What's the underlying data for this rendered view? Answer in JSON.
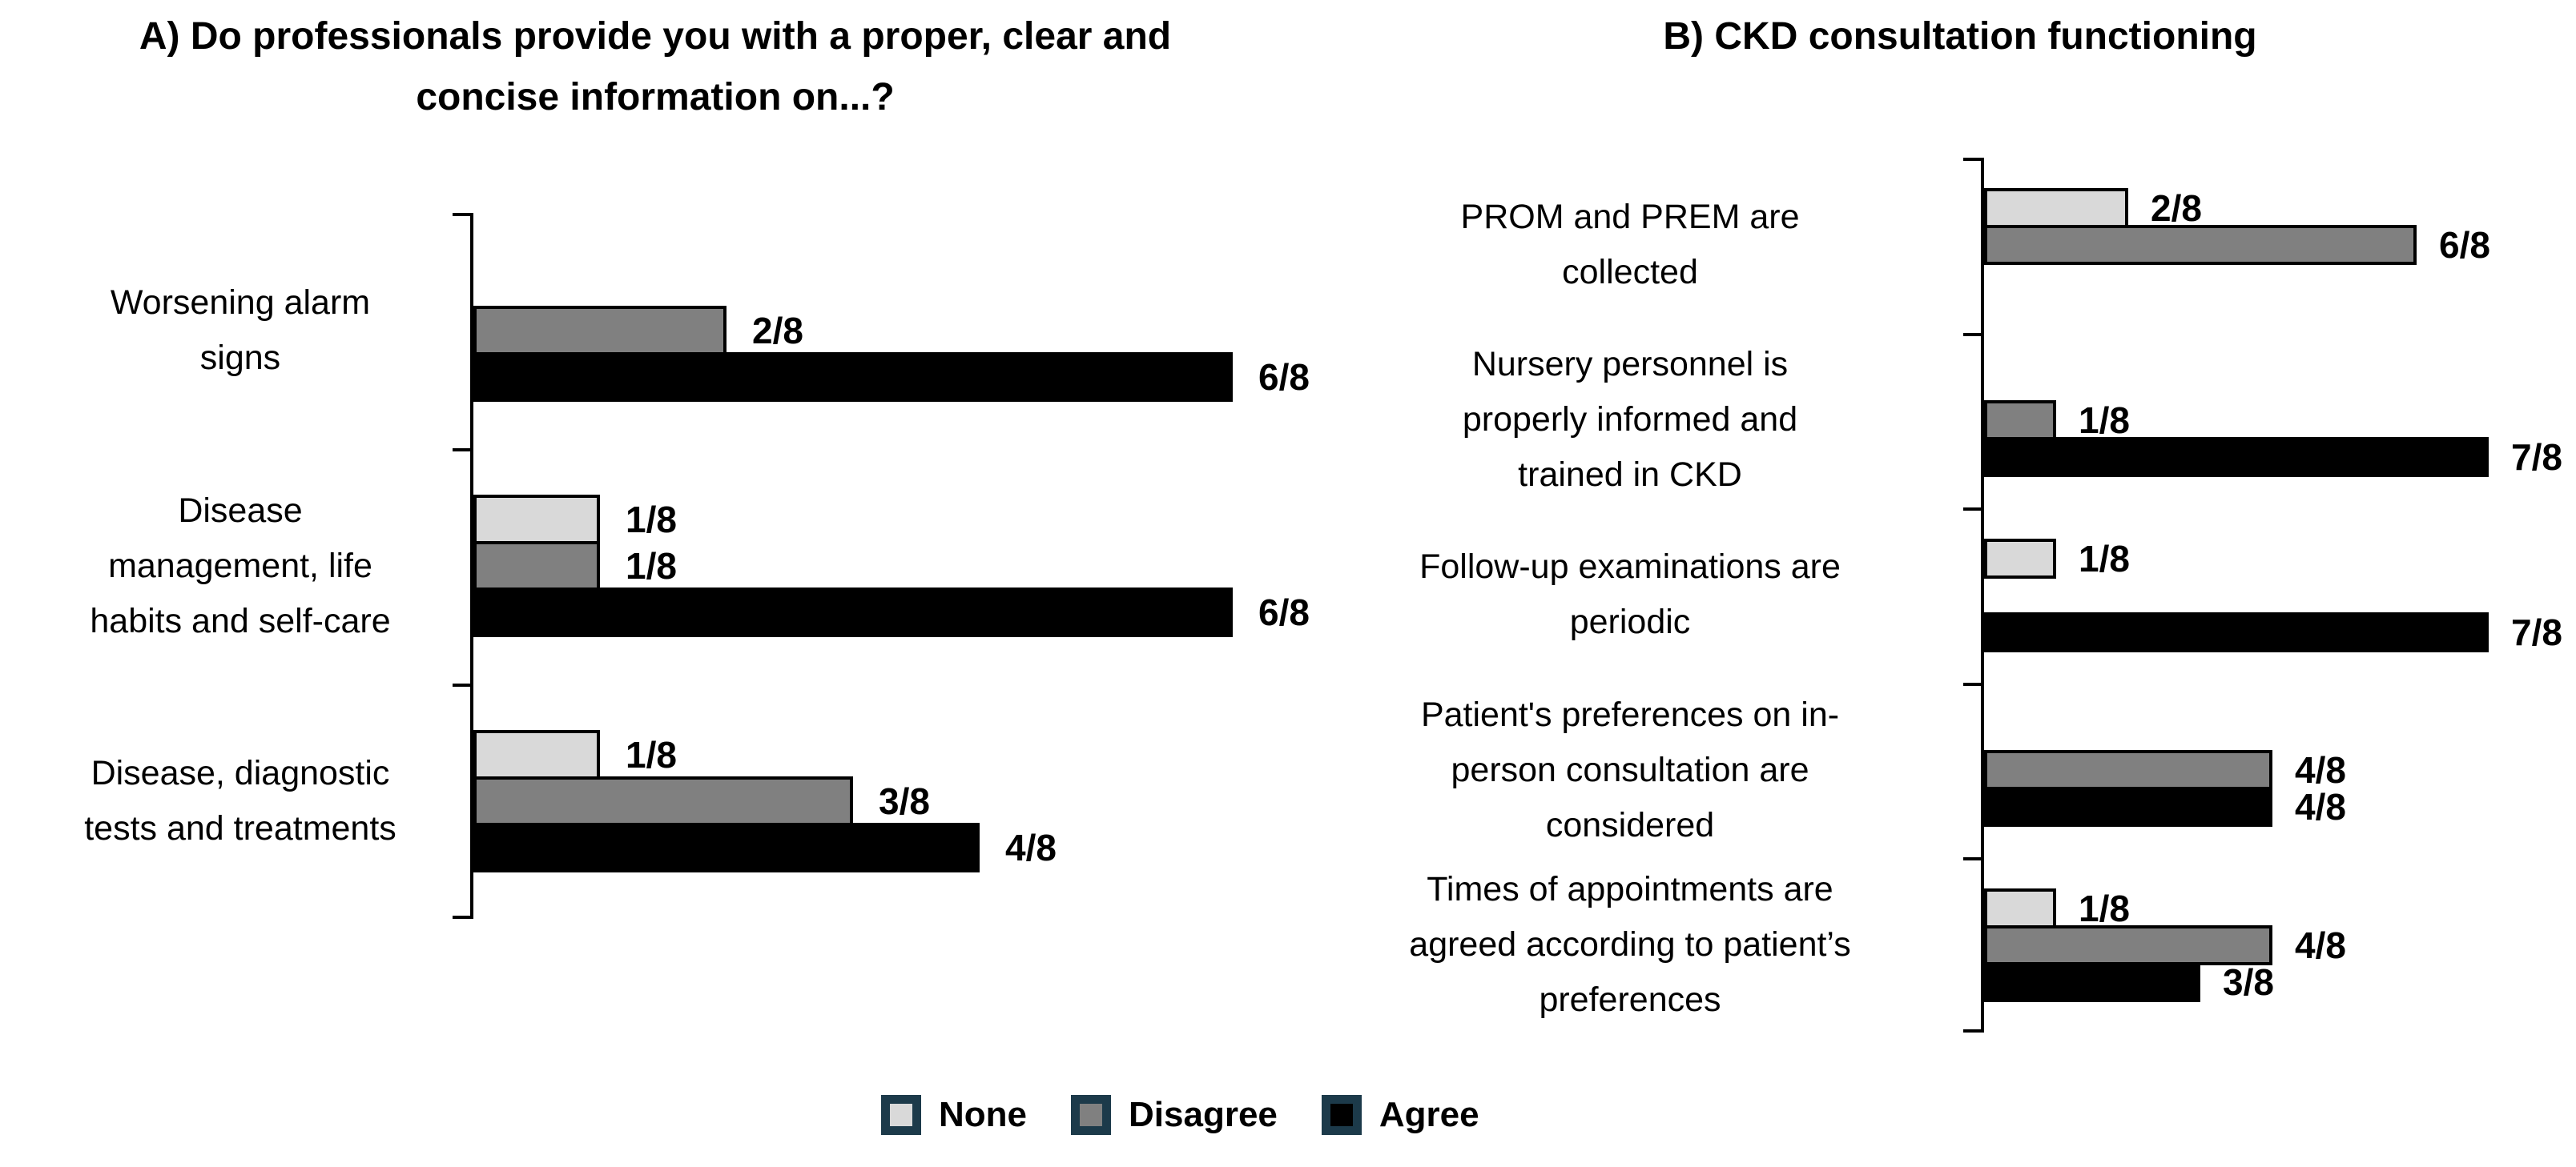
{
  "page": {
    "background": "#ffffff"
  },
  "legend": {
    "swatch_border_color": "#1c3a4a",
    "items": [
      {
        "label": "None",
        "fill": "#d9d9d9"
      },
      {
        "label": "Disagree",
        "fill": "#808080"
      },
      {
        "label": "Agree",
        "fill": "#000000"
      }
    ]
  },
  "chart_data": [
    {
      "type": "bar",
      "orientation": "horizontal",
      "title": "A) Do professionals provide you with a proper, clear and\nconcise information on...?",
      "xlabel": "",
      "ylabel": "",
      "xlim": [
        0,
        8
      ],
      "denominator": 8,
      "grid": false,
      "value_label_format": "n/8",
      "legend_position": "bottom",
      "categories": [
        "Worsening alarm\nsigns",
        "Disease\nmanagement, life\nhabits and self-care",
        "Disease, diagnostic\ntests and treatments"
      ],
      "series": [
        {
          "name": "None",
          "color": "#d9d9d9",
          "values": [
            0,
            1,
            1
          ],
          "labels": [
            "",
            "1/8",
            "1/8"
          ]
        },
        {
          "name": "Disagree",
          "color": "#808080",
          "values": [
            2,
            1,
            3
          ],
          "labels": [
            "2/8",
            "1/8",
            "3/8"
          ]
        },
        {
          "name": "Agree",
          "color": "#000000",
          "values": [
            6,
            6,
            4
          ],
          "labels": [
            "6/8",
            "6/8",
            "4/8"
          ]
        }
      ]
    },
    {
      "type": "bar",
      "orientation": "horizontal",
      "title": "B) CKD consultation functioning",
      "xlabel": "",
      "ylabel": "",
      "xlim": [
        0,
        8
      ],
      "denominator": 8,
      "grid": false,
      "value_label_format": "n/8",
      "legend_position": "bottom",
      "categories": [
        "PROM and PREM are\ncollected",
        "Nursery personnel is\nproperly informed and\ntrained in CKD",
        "Follow-up examinations are\nperiodic",
        "Patient's preferences on in-\nperson consultation are\nconsidered",
        "Times of appointments are\nagreed according to patient’s\npreferences"
      ],
      "series": [
        {
          "name": "None",
          "color": "#d9d9d9",
          "values": [
            2,
            0,
            1,
            0,
            1
          ],
          "labels": [
            "2/8",
            "",
            "1/8",
            "",
            "1/8"
          ]
        },
        {
          "name": "Disagree",
          "color": "#808080",
          "values": [
            6,
            1,
            0,
            4,
            4
          ],
          "labels": [
            "6/8",
            "1/8",
            "",
            "4/8",
            "4/8"
          ]
        },
        {
          "name": "Agree",
          "color": "#000000",
          "values": [
            0,
            7,
            7,
            4,
            3
          ],
          "labels": [
            "",
            "7/8",
            "7/8",
            "4/8",
            "3/8"
          ]
        }
      ]
    }
  ]
}
